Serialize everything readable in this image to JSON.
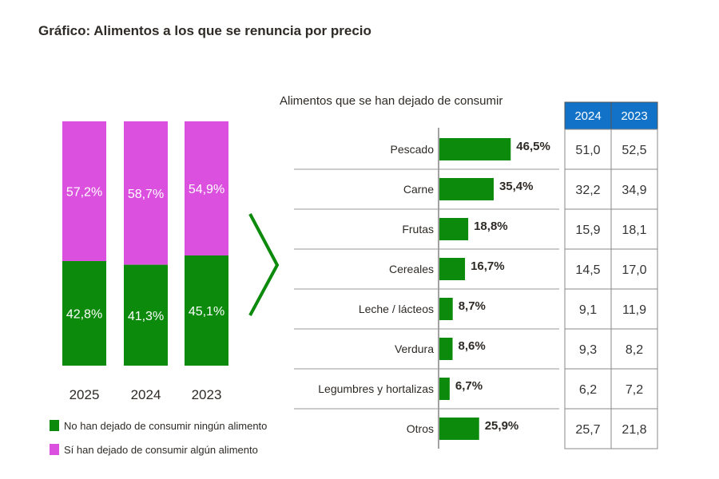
{
  "title": "Gráfico: Alimentos a los que se renuncia por precio",
  "colors": {
    "green": "#0b8a0b",
    "magenta": "#dc50e0",
    "table_header": "#1172c8",
    "text": "#2e2a26"
  },
  "chart_data": [
    {
      "type": "bar",
      "stacked": true,
      "categories": [
        "2025",
        "2024",
        "2023"
      ],
      "series": [
        {
          "name": "No han dejado de consumir ningún alimento",
          "values": [
            42.8,
            41.3,
            45.1
          ],
          "labels": [
            "42,8%",
            "41,3%",
            "45,1%"
          ],
          "color": "#0b8a0b"
        },
        {
          "name": "Sí han dejado de consumir algún alimento",
          "values": [
            57.2,
            58.7,
            54.9
          ],
          "labels": [
            "57,2%",
            "58,7%",
            "54,9%"
          ],
          "color": "#dc50e0"
        }
      ],
      "ylim": [
        0,
        100
      ],
      "legend": "bottom"
    },
    {
      "type": "bar",
      "orientation": "horizontal",
      "title": "Alimentos que se han dejado de consumir",
      "categories": [
        "Pescado",
        "Carne",
        "Frutas",
        "Cereales",
        "Leche / lácteos",
        "Verdura",
        "Legumbres y hortalizas",
        "Otros"
      ],
      "values": [
        46.5,
        35.4,
        18.8,
        16.7,
        8.7,
        8.6,
        6.7,
        25.9
      ],
      "labels": [
        "46,5%",
        "35,4%",
        "18,8%",
        "16,7%",
        "8,7%",
        "8,6%",
        "6,7%",
        "25,9%"
      ],
      "color": "#0b8a0b"
    },
    {
      "type": "table",
      "columns": [
        "2024",
        "2023"
      ],
      "rows": [
        [
          "51,0",
          "52,5"
        ],
        [
          "32,2",
          "34,9"
        ],
        [
          "15,9",
          "18,1"
        ],
        [
          "14,5",
          "17,0"
        ],
        [
          "9,1",
          "11,9"
        ],
        [
          "9,3",
          "8,2"
        ],
        [
          "6,2",
          "7,2"
        ],
        [
          "25,7",
          "21,8"
        ]
      ]
    }
  ]
}
